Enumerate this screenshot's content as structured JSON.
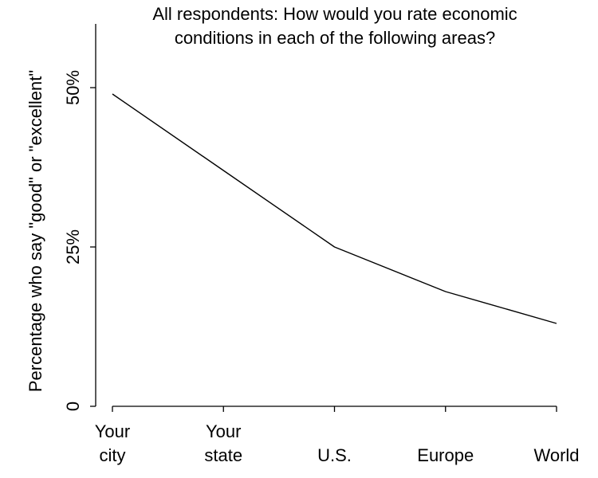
{
  "chart_data": {
    "type": "line",
    "title_lines": [
      "All respondents:  How would you rate economic",
      "conditions in each of the following areas?"
    ],
    "ylabel": "Percentage who say \"good\" or \"excellent\"",
    "xlabel": "",
    "categories": [
      [
        "Your",
        "city"
      ],
      [
        "Your",
        "state"
      ],
      [
        "U.S."
      ],
      [
        "Europe"
      ],
      [
        "World"
      ]
    ],
    "series": [
      {
        "values": [
          49,
          37,
          25,
          18,
          13
        ]
      }
    ],
    "ylim": [
      0,
      60
    ],
    "yticks": [
      {
        "value": 0,
        "label": "0"
      },
      {
        "value": 25,
        "label": "25%"
      },
      {
        "value": 50,
        "label": "50%"
      }
    ],
    "grid": false,
    "colors": {
      "line": "#000000",
      "axis": "#000000"
    }
  }
}
